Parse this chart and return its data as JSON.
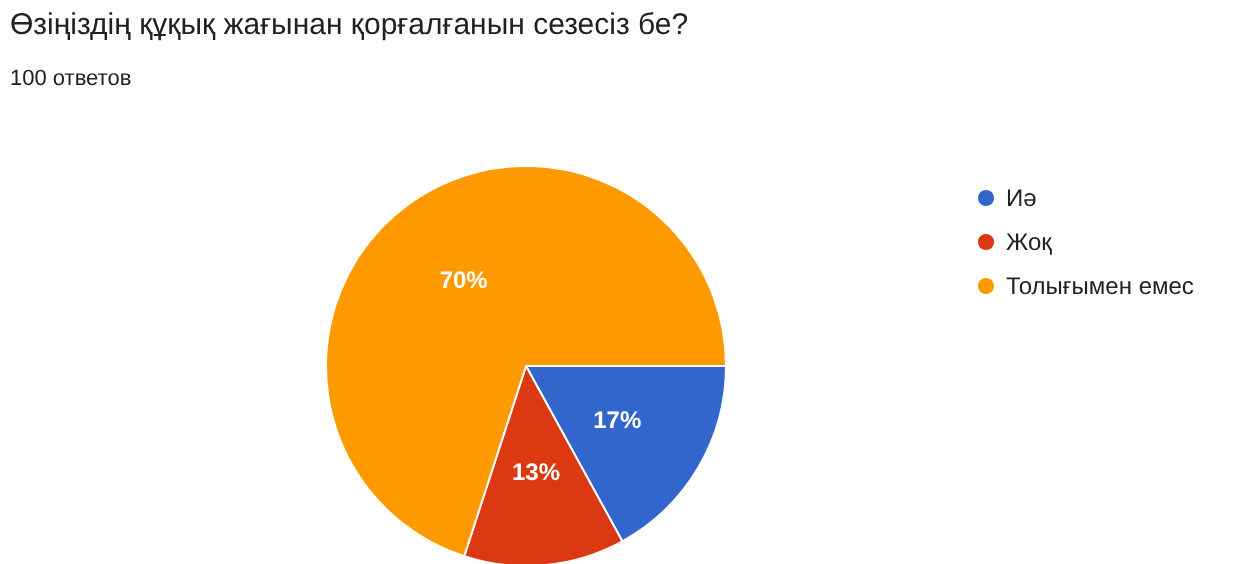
{
  "chart_data": {
    "type": "pie",
    "title": "Өзіңіздің құқық жағынан қорғалғанын сезесіз бе?",
    "subtitle": "100 ответов",
    "categories": [
      "Иә",
      "Жоқ",
      "Толығымен емес"
    ],
    "values": [
      17,
      13,
      70
    ],
    "colors": [
      "#3366cc",
      "#dc3912",
      "#ff9900"
    ],
    "value_labels": [
      "17%",
      "13%",
      "70%"
    ],
    "legend": "right"
  }
}
